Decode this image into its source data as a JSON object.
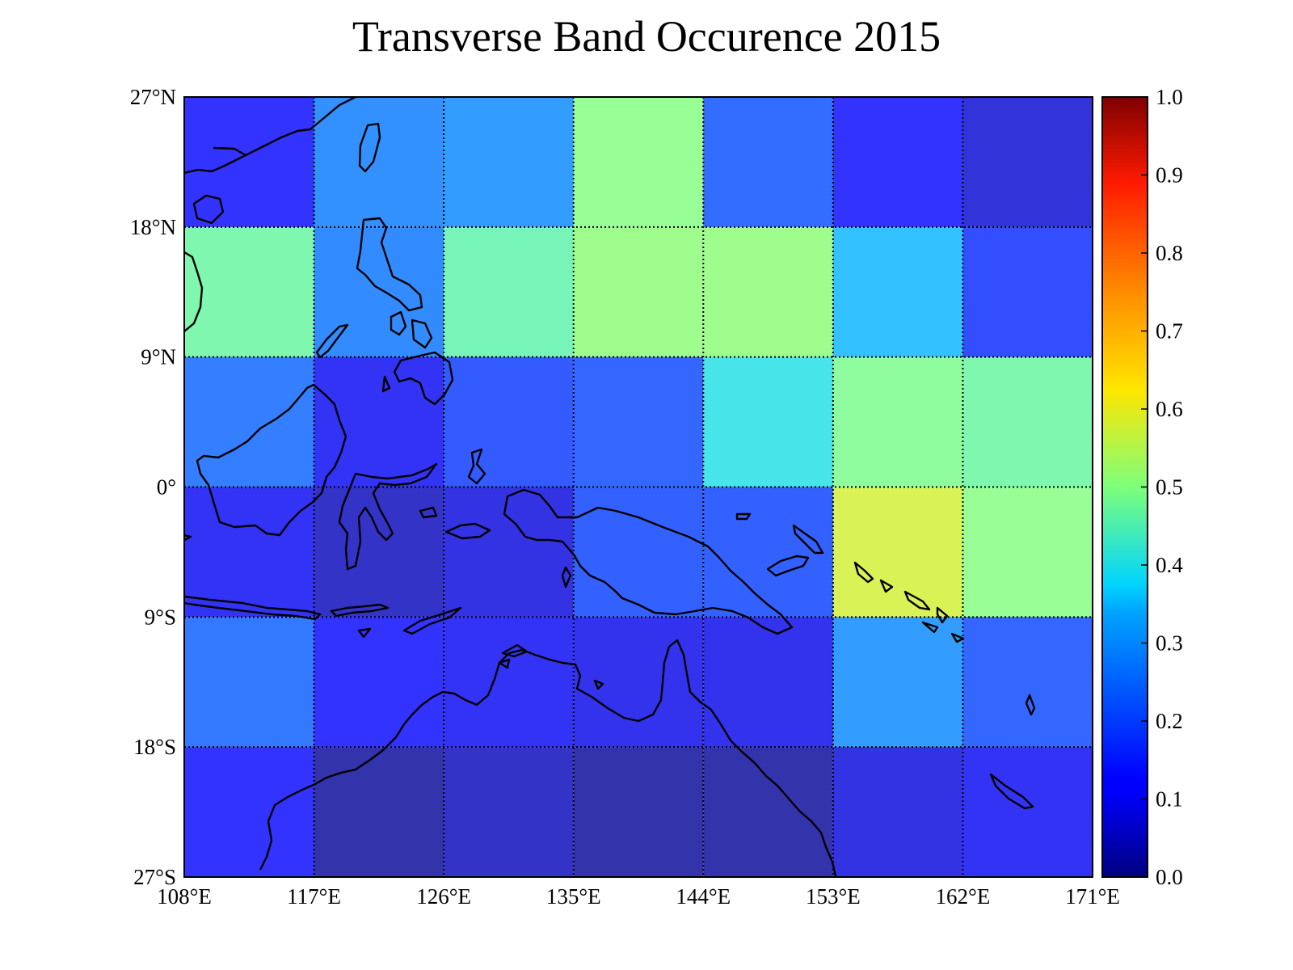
{
  "chart_data": {
    "type": "heatmap",
    "title": "Transverse Band Occurence 2015",
    "x_ticks": [
      "108°E",
      "117°E",
      "126°E",
      "135°E",
      "144°E",
      "153°E",
      "162°E",
      "171°E"
    ],
    "y_ticks": [
      "27°N",
      "18°N",
      "9°N",
      "0°",
      "9°S",
      "18°S",
      "27°S"
    ],
    "x_range": [
      108,
      171
    ],
    "y_range": [
      -27,
      27
    ],
    "colorbar": {
      "range": [
        0.0,
        1.0
      ],
      "ticks": [
        "0.0",
        "0.1",
        "0.2",
        "0.3",
        "0.4",
        "0.5",
        "0.6",
        "0.7",
        "0.8",
        "0.9",
        "1.0"
      ],
      "colormap": "jet"
    },
    "grid": true,
    "row_lat_ranges": [
      [
        18,
        27
      ],
      [
        9,
        18
      ],
      [
        0,
        9
      ],
      [
        -9,
        0
      ],
      [
        -18,
        -9
      ],
      [
        -27,
        -18
      ]
    ],
    "col_lon_ranges": [
      [
        108,
        117
      ],
      [
        117,
        126
      ],
      [
        126,
        135
      ],
      [
        135,
        144
      ],
      [
        144,
        153
      ],
      [
        153,
        162
      ],
      [
        162,
        171
      ]
    ],
    "values": [
      [
        0.12,
        0.28,
        0.3,
        0.5,
        0.22,
        0.12,
        0.07
      ],
      [
        0.47,
        0.27,
        0.46,
        0.51,
        0.51,
        0.35,
        0.17
      ],
      [
        0.25,
        0.1,
        0.19,
        0.21,
        0.4,
        0.49,
        0.47
      ],
      [
        0.1,
        0.05,
        0.08,
        0.2,
        0.2,
        0.58,
        0.5
      ],
      [
        0.24,
        0.11,
        0.1,
        0.09,
        0.09,
        0.3,
        0.21
      ],
      [
        0.12,
        0.02,
        0.05,
        0.02,
        0.02,
        0.08,
        0.1
      ]
    ]
  }
}
